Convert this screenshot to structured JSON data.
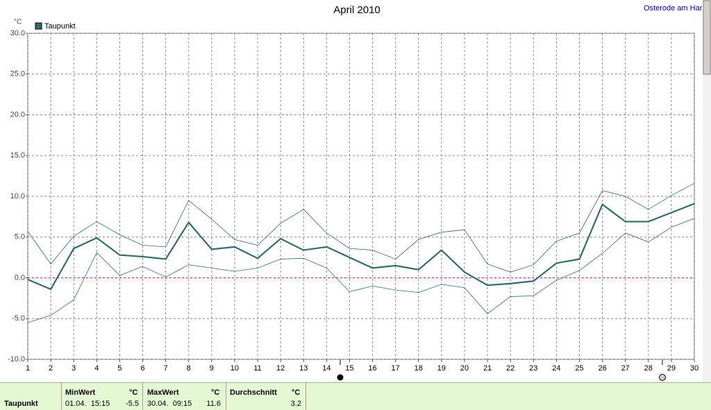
{
  "chart_data": {
    "type": "line",
    "title": "April 2010",
    "location": "Osterode am Harz",
    "y_unit": "°C",
    "x": [
      1,
      2,
      3,
      4,
      5,
      6,
      7,
      8,
      9,
      10,
      11,
      12,
      13,
      14,
      15,
      16,
      17,
      18,
      19,
      20,
      21,
      22,
      23,
      24,
      25,
      26,
      27,
      28,
      29,
      30
    ],
    "xlim": [
      1,
      30
    ],
    "xticks": [
      1,
      2,
      3,
      4,
      5,
      6,
      7,
      8,
      9,
      10,
      11,
      12,
      13,
      14,
      15,
      16,
      17,
      18,
      19,
      20,
      21,
      22,
      23,
      24,
      25,
      26,
      27,
      28,
      29,
      30
    ],
    "ylim": [
      -10,
      30
    ],
    "yticks": [
      {
        "value": -10,
        "label": "-10.0"
      },
      {
        "value": -5,
        "label": "-5.0"
      },
      {
        "value": 0,
        "label": "0.0"
      },
      {
        "value": 5,
        "label": "5.0"
      },
      {
        "value": 10,
        "label": "10.0"
      },
      {
        "value": 15,
        "label": "15.0"
      },
      {
        "value": 20,
        "label": "20.0"
      },
      {
        "value": 25,
        "label": "25.0"
      },
      {
        "value": 30,
        "label": "30.0"
      }
    ],
    "grid": true,
    "zero_line_color": "#c000c0",
    "series": [
      {
        "name": "Taupunkt",
        "color": "#336b6b",
        "width": 2.2,
        "values": [
          -0.2,
          -1.4,
          3.6,
          4.9,
          2.8,
          2.6,
          2.3,
          6.8,
          3.5,
          3.8,
          2.4,
          4.8,
          3.4,
          3.8,
          2.5,
          1.2,
          1.5,
          1.0,
          3.4,
          0.7,
          -0.9,
          -0.7,
          -0.4,
          1.8,
          2.3,
          9.0,
          6.9,
          6.9,
          8.0,
          9.1
        ]
      },
      {
        "color": "#336b6b",
        "width": 0.8,
        "values": [
          5.7,
          1.7,
          5.1,
          6.9,
          5.3,
          4.0,
          3.8,
          9.5,
          7.2,
          4.7,
          4.0,
          6.7,
          8.4,
          5.5,
          3.6,
          3.4,
          2.3,
          4.7,
          5.6,
          5.9,
          1.7,
          0.7,
          1.6,
          4.5,
          5.5,
          10.7,
          10.0,
          8.4,
          10.1,
          11.6
        ]
      },
      {
        "color": "#336b6b",
        "width": 0.8,
        "values": [
          -5.5,
          -4.6,
          -2.7,
          3.1,
          0.3,
          1.4,
          0.1,
          1.6,
          1.2,
          0.8,
          1.2,
          2.3,
          2.4,
          1.2,
          -1.7,
          -1.0,
          -1.5,
          -1.8,
          -0.8,
          -1.2,
          -4.4,
          -2.3,
          -2.2,
          -0.3,
          0.9,
          3.0,
          5.5,
          4.4,
          6.2,
          7.3
        ]
      }
    ]
  },
  "summary_table": {
    "headers": [
      "MinWert",
      "°C",
      "MaxWert",
      "°C",
      "Durchschnitt",
      "°C"
    ],
    "row": {
      "label": "Taupunkt",
      "min_time": "01.04.  15:15",
      "min": -5.5,
      "max_time": "30.04.  09:15",
      "max": 11.6,
      "avg": 3.2
    }
  }
}
